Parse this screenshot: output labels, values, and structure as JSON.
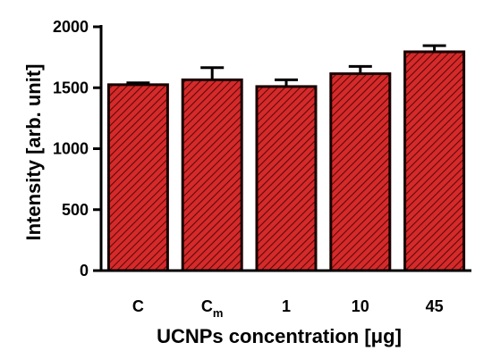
{
  "chart_data": {
    "type": "bar",
    "title": "",
    "xlabel": "UCNPs concentration [μg]",
    "ylabel": "Intensity [arb. unit]",
    "ylim": [
      0,
      2000
    ],
    "yticks": [
      "0",
      "500",
      "1000",
      "1500",
      "2000"
    ],
    "categories": [
      {
        "main": "C",
        "sub": ""
      },
      {
        "main": "C",
        "sub": "m"
      },
      {
        "main": "1",
        "sub": ""
      },
      {
        "main": "10",
        "sub": ""
      },
      {
        "main": "45",
        "sub": ""
      }
    ],
    "values": [
      1525,
      1565,
      1510,
      1615,
      1795
    ],
    "errors": [
      15,
      100,
      55,
      60,
      50
    ],
    "grid": false,
    "bar_fill": "#d62a2a",
    "bar_hatch_color": "#5a0a0a",
    "bar_edge": "#1a0000"
  }
}
